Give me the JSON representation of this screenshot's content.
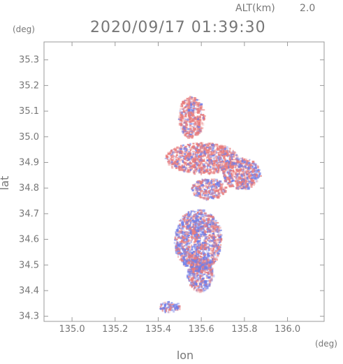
{
  "header": {
    "altitude_label": "ALT(km)",
    "altitude_value": "2.0",
    "timestamp": "2020/09/17 01:39:30"
  },
  "chart_data": {
    "type": "heatmap",
    "title": "2020/09/17 01:39:30",
    "subtitle": "ALT(km) 2.0",
    "xlabel": "lon",
    "ylabel": "lat",
    "x_unit": "(deg)",
    "y_unit": "(deg)",
    "xlim": [
      134.87,
      136.17
    ],
    "ylim": [
      34.28,
      35.37
    ],
    "x_ticks": [
      135.0,
      135.2,
      135.4,
      135.6,
      135.8,
      136.0
    ],
    "x_tick_labels": [
      "135.0",
      "135.2",
      "135.4",
      "135.6",
      "135.8",
      "136.0"
    ],
    "y_ticks": [
      34.3,
      34.4,
      34.5,
      34.6,
      34.7,
      34.8,
      34.9,
      35.0,
      35.1,
      35.2,
      35.3
    ],
    "y_tick_labels": [
      "34.3",
      "34.4",
      "34.5",
      "34.6",
      "34.7",
      "34.8",
      "34.9",
      "35.0",
      "35.1",
      "35.2",
      "35.3"
    ],
    "grid": false,
    "colors": {
      "positive": "#e87a7a",
      "negative": "#6f7de8",
      "frame": "#999999"
    },
    "regions": [
      {
        "lon": 135.55,
        "lat": 35.08,
        "dlon": 0.06,
        "dlat": 0.08,
        "bias": 0.75
      },
      {
        "lon": 135.6,
        "lat": 34.92,
        "dlon": 0.17,
        "dlat": 0.06,
        "bias": 0.72
      },
      {
        "lon": 135.78,
        "lat": 34.86,
        "dlon": 0.09,
        "dlat": 0.06,
        "bias": 0.65
      },
      {
        "lon": 135.63,
        "lat": 34.8,
        "dlon": 0.08,
        "dlat": 0.04,
        "bias": 0.6
      },
      {
        "lon": 135.58,
        "lat": 34.6,
        "dlon": 0.11,
        "dlat": 0.12,
        "bias": 0.45
      },
      {
        "lon": 135.59,
        "lat": 34.47,
        "dlon": 0.06,
        "dlat": 0.07,
        "bias": 0.45
      },
      {
        "lon": 135.45,
        "lat": 34.34,
        "dlon": 0.05,
        "dlat": 0.02,
        "bias": 0.35
      }
    ]
  }
}
